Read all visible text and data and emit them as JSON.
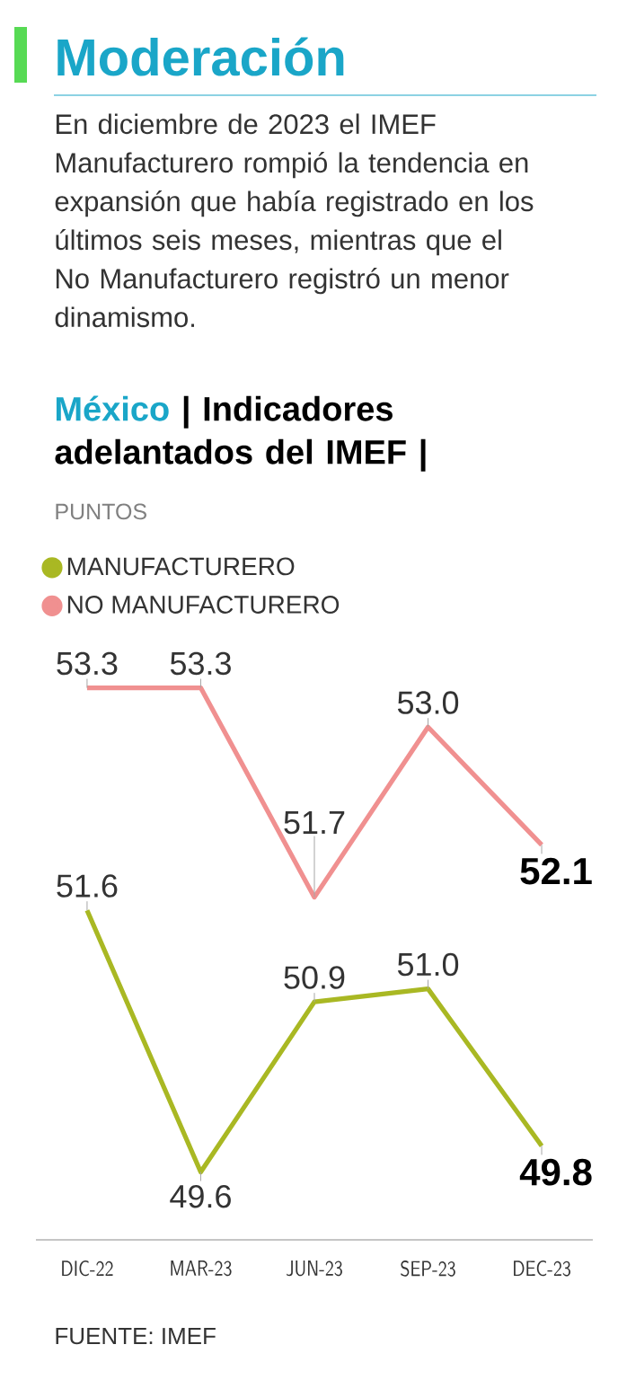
{
  "chart_data": {
    "type": "line",
    "title": "Moderación",
    "subtitle": "En diciembre de 2023 el IMEF Manufacturero rompió la tendencia en expansión que había registrado en los últimos seis meses, mientras que el No Manufacturero registró un menor dinamismo.",
    "annotations": [
      "México",
      "| Indicadores adelantados del IMEF |",
      "FUENTE: IMEF",
      "PUNTOS"
    ],
    "categories": [
      "DIC-22",
      "MAR-23",
      "JUN-23",
      "SEP-23",
      "DEC-23"
    ],
    "series": [
      {
        "name": "MANUFACTURERO",
        "color": "#a9b823",
        "values": [
          51.6,
          49.6,
          50.9,
          51.0,
          49.8
        ],
        "value_labels": [
          "51.6",
          "49.6",
          "50.9",
          "51.0",
          "49.8"
        ]
      },
      {
        "name": "NO MANUFACTURERO",
        "color": "#f09090",
        "values": [
          53.3,
          53.3,
          51.7,
          53.0,
          52.1
        ],
        "value_labels": [
          "53.3",
          "53.3",
          "51.7",
          "53.0",
          "52.1"
        ]
      }
    ],
    "legend": "top left",
    "marker": "none",
    "line_style": "solid",
    "grid": false
  }
}
